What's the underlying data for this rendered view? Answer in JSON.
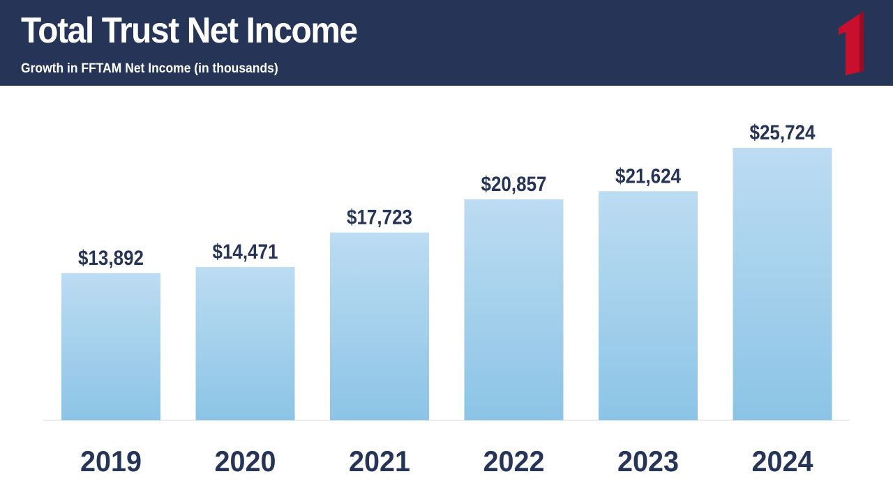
{
  "header": {
    "title": "Total Trust Net Income",
    "subtitle": "Growth in FFTAM Net Income (in thousands)",
    "logo_icon": "red-number-one-logo-icon"
  },
  "colors": {
    "header_bg": "#253457",
    "text_dark": "#253457",
    "bar_top": "#bcdcf2",
    "bar_bottom": "#8cc4e6",
    "logo_red": "#c8102e",
    "axis_line": "#d9d9d9"
  },
  "chart_data": {
    "type": "bar",
    "categories": [
      "2019",
      "2020",
      "2021",
      "2022",
      "2023",
      "2024"
    ],
    "values": [
      13892,
      14471,
      17723,
      20857,
      21624,
      25724
    ],
    "data_labels": [
      "$13,892",
      "$14,471",
      "$17,723",
      "$20,857",
      "$21,624",
      "$25,724"
    ],
    "ylim": [
      0,
      25724
    ],
    "grid": false,
    "legend": "none"
  }
}
